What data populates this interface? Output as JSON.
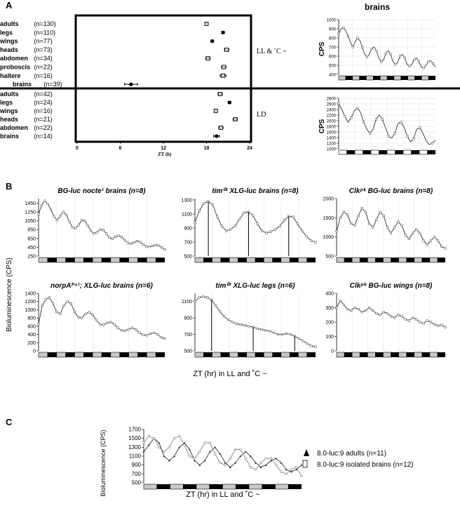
{
  "labels": {
    "A": "A",
    "B": "B",
    "C": "C",
    "dot_xlabel": "ZT (h)",
    "ll_label": "LL & ˚C ~",
    "ld_label": "LD",
    "brains_title": "brains",
    "cps": "CPS",
    "b_ylabel": "Bioluminescence (CPS)",
    "b_xlabel": "ZT (hr) in LL and ˚C ~",
    "c_ylabel": "Bioluminescence (CPS)",
    "c_xlabel": "ZT (hr) in LL and ˚C ~",
    "legend1": "8.0-luc:9  adults (n=11)",
    "legend2": "8.0-luc:9 isolated brains (n=12)"
  },
  "chart_data": [
    {
      "type": "scatter",
      "panel": "A-phase",
      "xticks": [
        0,
        6,
        12,
        18,
        24
      ],
      "xlim": [
        0,
        24
      ],
      "ll_rows": [
        {
          "label": "adults",
          "n": "(n=130)",
          "phase": 18.0,
          "err": 0.2,
          "marker": "square"
        },
        {
          "label": "legs",
          "n": "(n=110)",
          "phase": 20.3,
          "err": 0.2,
          "marker": "circle"
        },
        {
          "label": "wings",
          "n": "(n=77)",
          "phase": 18.8,
          "err": 0.2,
          "marker": "circle"
        },
        {
          "label": "heads",
          "n": "(n=73)",
          "phase": 20.8,
          "err": 0.3,
          "marker": "square"
        },
        {
          "label": "abdomen",
          "n": "(n=34)",
          "phase": 18.2,
          "err": 0.3,
          "marker": "square"
        },
        {
          "label": "proboscis",
          "n": "(n=22)",
          "phase": 20.4,
          "err": 0.3,
          "marker": "square"
        },
        {
          "label": "haltere",
          "n": "(n=16)",
          "phase": 20.3,
          "err": 0.4,
          "marker": "square"
        },
        {
          "label": "brains",
          "n": "(n=39)",
          "phase": 7.5,
          "err": 0.9,
          "marker": "circle"
        }
      ],
      "ld_rows": [
        {
          "label": "adults",
          "n": "(n=42)",
          "phase": 19.9,
          "err": 0.3,
          "marker": "square"
        },
        {
          "label": "legs",
          "n": "(n=24)",
          "phase": 21.2,
          "err": 0.2,
          "marker": "circle"
        },
        {
          "label": "wings",
          "n": "(n=16)",
          "phase": 19.3,
          "err": 0.2,
          "marker": "square"
        },
        {
          "label": "heads",
          "n": "(n=21)",
          "phase": 22.0,
          "err": 0.3,
          "marker": "square"
        },
        {
          "label": "abdomen",
          "n": "(n=22)",
          "phase": 20.0,
          "err": 0.3,
          "marker": "square"
        },
        {
          "label": "brains",
          "n": "(n=14)",
          "phase": 19.4,
          "err": 0.4,
          "marker": "circle"
        }
      ]
    },
    {
      "type": "line",
      "panel": "A-brains-LL",
      "yticks": [
        400,
        500,
        600,
        700,
        800,
        900,
        1000
      ],
      "ylim": [
        400,
        1000
      ],
      "days": 7,
      "bar": "LL",
      "y": [
        850,
        900,
        910,
        880,
        820,
        750,
        700,
        760,
        800,
        770,
        700,
        620,
        590,
        620,
        680,
        700,
        660,
        580,
        540,
        560,
        630,
        660,
        620,
        540,
        510,
        530,
        600,
        620,
        580,
        510,
        490,
        510,
        560,
        580,
        540,
        480,
        470,
        500,
        540,
        550,
        520,
        480
      ]
    },
    {
      "type": "line",
      "panel": "A-brains-LD",
      "yticks": [
        1000,
        1200,
        1400,
        1600,
        1800,
        2000,
        2200,
        2400,
        2600,
        2800
      ],
      "ylim": [
        1000,
        2800
      ],
      "days": 6,
      "bar": "LD",
      "y": [
        2600,
        2400,
        2150,
        1950,
        2100,
        2350,
        2450,
        2300,
        1950,
        1700,
        1550,
        1700,
        2050,
        2200,
        2050,
        1750,
        1450,
        1380,
        1550,
        1900,
        1950,
        1750,
        1450,
        1250,
        1350,
        1700,
        1750,
        1550,
        1300,
        1150,
        1200,
        1300
      ]
    },
    {
      "type": "line",
      "panel": "B1",
      "title": "BG-luc nocte¹ brains (n=8)",
      "yticks": [
        250,
        450,
        650,
        850,
        1050,
        1250,
        1450
      ],
      "ylim": [
        250,
        1550
      ],
      "days": 7,
      "y": [
        1200,
        1400,
        1500,
        1430,
        1300,
        1150,
        1060,
        1150,
        1250,
        1180,
        1030,
        900,
        880,
        950,
        1060,
        1050,
        940,
        820,
        760,
        790,
        850,
        840,
        760,
        670,
        640,
        690,
        710,
        680,
        610,
        550,
        530,
        560,
        590,
        570,
        510,
        470,
        460,
        480,
        500,
        490,
        450,
        400
      ]
    },
    {
      "type": "line",
      "panel": "B2",
      "title": "tim⁰¹ XLG-luc brains (n=8)",
      "yticks": [
        500,
        700,
        900,
        1100,
        1300
      ],
      "ylim": [
        500,
        1320
      ],
      "days": 7,
      "y": [
        980,
        1150,
        1250,
        1280,
        1230,
        1060,
        930,
        860,
        880,
        930,
        1030,
        1120,
        1130,
        1080,
        960,
        860,
        830,
        850,
        880,
        930,
        1010,
        1070,
        1060,
        960,
        860,
        780,
        720,
        700
      ],
      "markers": [
        3,
        12,
        21
      ]
    },
    {
      "type": "line",
      "panel": "B3",
      "title": "Clkʲʳᵏ BG-luc brains (n=8)",
      "yticks": [
        500,
        1000,
        1500,
        2000
      ],
      "ylim": [
        500,
        2000
      ],
      "days": 7,
      "y": [
        1150,
        1500,
        1650,
        1580,
        1350,
        1300,
        1550,
        1750,
        1650,
        1350,
        1250,
        1450,
        1650,
        1550,
        1250,
        1100,
        1250,
        1400,
        1300,
        1050,
        950,
        1100,
        1200,
        1100,
        900,
        800,
        900,
        1000,
        900,
        750,
        700
      ]
    },
    {
      "type": "line",
      "panel": "B4",
      "title": "norpAᴾ⁴¹; XLG-luc brains (n=6)",
      "yticks": [
        0,
        200,
        400,
        600,
        800,
        1000,
        1200,
        1400
      ],
      "ylim": [
        0,
        1400
      ],
      "days": 7,
      "y": [
        650,
        1100,
        1250,
        1300,
        1150,
        950,
        900,
        1100,
        1200,
        1150,
        950,
        820,
        800,
        900,
        940,
        880,
        750,
        650,
        630,
        680,
        700,
        650,
        560,
        500,
        490,
        530,
        560,
        520,
        440,
        390,
        380,
        420,
        440,
        400,
        330,
        300
      ]
    },
    {
      "type": "line",
      "panel": "B5",
      "title": "tim⁰¹ XLG-luc legs (n=6)",
      "yticks": [
        500,
        700,
        900,
        1100
      ],
      "ylim": [
        500,
        1200
      ],
      "days": 7,
      "y": [
        1100,
        1150,
        1160,
        1150,
        1120,
        1050,
        980,
        920,
        880,
        850,
        830,
        820,
        810,
        800,
        790,
        770,
        760,
        750,
        740,
        720,
        700,
        700,
        710,
        700,
        680,
        650,
        620,
        590,
        560,
        550
      ],
      "markers": [
        4,
        14,
        24
      ]
    },
    {
      "type": "line",
      "panel": "B6",
      "title": "Clkʲʳᵏ BG-luc wings (n=8)",
      "yticks": [
        0,
        100,
        200,
        300,
        400
      ],
      "ylim": [
        0,
        400
      ],
      "days": 7,
      "y": [
        300,
        350,
        320,
        290,
        280,
        300,
        290,
        270,
        280,
        300,
        280,
        260,
        250,
        270,
        260,
        240,
        230,
        250,
        240,
        220,
        210,
        230,
        220,
        200,
        190,
        210,
        200,
        185,
        175,
        180,
        165
      ]
    },
    {
      "type": "line",
      "panel": "C",
      "yticks": [
        500,
        700,
        900,
        1100,
        1300,
        1500,
        1700
      ],
      "ylim": [
        500,
        1700
      ],
      "days": 6,
      "series": [
        {
          "name": "8.0-luc:9  adults (n=11)",
          "y": [
            1200,
            1350,
            1500,
            1400,
            1100,
            1000,
            1100,
            1300,
            1400,
            1250,
            1000,
            900,
            1000,
            1200,
            1300,
            1150,
            950,
            850,
            950,
            1100,
            1200,
            1100,
            950,
            850,
            900,
            1000,
            1050,
            950,
            800,
            750,
            800,
            900
          ]
        },
        {
          "name": "8.0-luc:9 isolated brains (n=12)",
          "y": [
            1400,
            1550,
            1500,
            1300,
            1200,
            1300,
            1500,
            1550,
            1350,
            1100,
            1050,
            1200,
            1400,
            1400,
            1150,
            950,
            900,
            1050,
            1250,
            1250,
            1050,
            850,
            800,
            950,
            1050,
            1050,
            900,
            750,
            700,
            800,
            850,
            650
          ]
        }
      ]
    }
  ]
}
